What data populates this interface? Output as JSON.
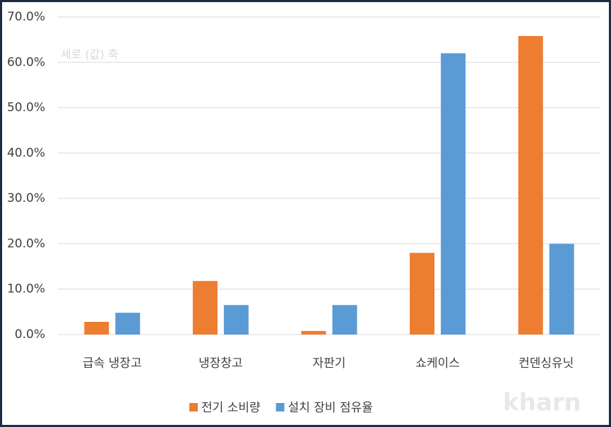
{
  "chart_data": {
    "type": "bar",
    "categories": [
      "급속 냉장고",
      "냉장창고",
      "자판기",
      "쇼케이스",
      "컨덴싱유닛"
    ],
    "series": [
      {
        "name": "전기 소비량",
        "color": "#ed7d31",
        "values": [
          2.8,
          11.8,
          0.8,
          18,
          65.8
        ]
      },
      {
        "name": "설치 장비 점유율",
        "color": "#5b9bd5",
        "values": [
          4.8,
          6.5,
          6.5,
          62,
          20
        ]
      }
    ],
    "ylim": [
      0,
      70
    ],
    "yticks": [
      {
        "value": 0,
        "label": "0.0%"
      },
      {
        "value": 10,
        "label": "10.0%"
      },
      {
        "value": 20,
        "label": "20.0%"
      },
      {
        "value": 30,
        "label": "30.0%"
      },
      {
        "value": 40,
        "label": "40.0%"
      },
      {
        "value": 50,
        "label": "50.0%"
      },
      {
        "value": 60,
        "label": "60.0%"
      },
      {
        "value": 70,
        "label": "70.0%"
      }
    ],
    "grid": true,
    "legend": "bottom",
    "annotation": "세로 (값) 축",
    "watermark": "kharn"
  }
}
